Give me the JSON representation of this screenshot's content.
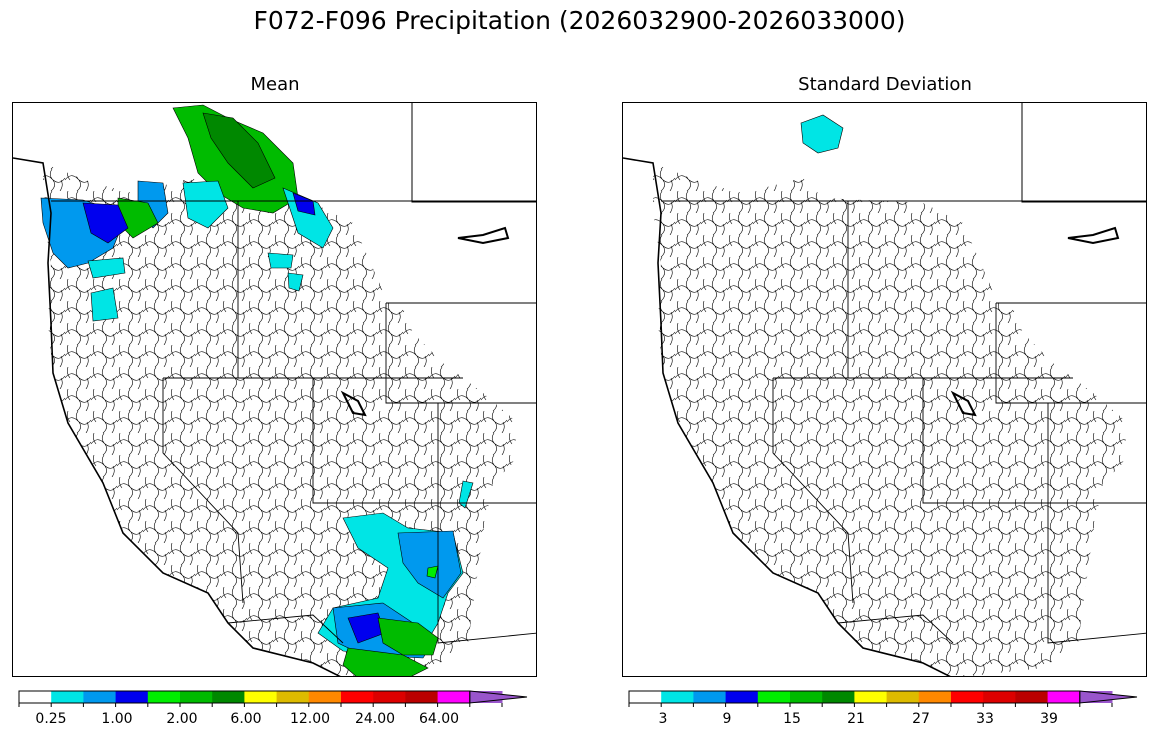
{
  "title": "F072-F096 Precipitation (2026032900-2026033000)",
  "panels": [
    {
      "id": "mean",
      "title": "Mean",
      "colorbar": {
        "tick_labels": [
          "0.25",
          "1.00",
          "2.00",
          "6.00",
          "12.00",
          "24.00",
          "64.00"
        ],
        "colors": [
          "#ffffff",
          "#00e5e5",
          "#0099ee",
          "#0000ee",
          "#00ee00",
          "#00bb00",
          "#008800",
          "#ffff00",
          "#ddbb00",
          "#ff8800",
          "#ff0000",
          "#dd0000",
          "#bb0000",
          "#ff00ff",
          "#9955cc"
        ],
        "extend": "max"
      }
    },
    {
      "id": "sd",
      "title": "Standard Deviation",
      "colorbar": {
        "tick_labels": [
          "3",
          "9",
          "15",
          "21",
          "27",
          "33",
          "39"
        ],
        "colors": [
          "#ffffff",
          "#00e5e5",
          "#0099ee",
          "#0000ee",
          "#00ee00",
          "#00bb00",
          "#008800",
          "#ffff00",
          "#ddbb00",
          "#ff8800",
          "#ff0000",
          "#dd0000",
          "#bb0000",
          "#ff00ff",
          "#9955cc"
        ],
        "extend": "max"
      }
    }
  ],
  "colors": {
    "cyan": "#00e5e5",
    "light_blue": "#0099ee",
    "blue": "#0000ee",
    "bright_green": "#00ee00",
    "green": "#00bb00",
    "dark_green": "#008800"
  }
}
